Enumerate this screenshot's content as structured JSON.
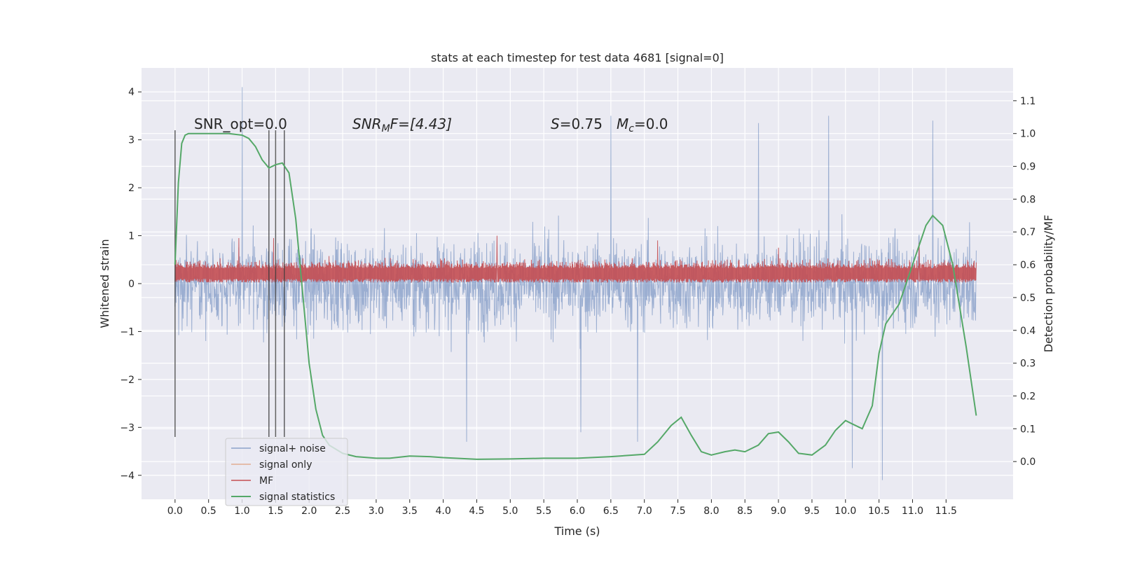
{
  "chart_data": {
    "type": "line",
    "title": "stats at each timestep for test data 4681 [signal=0]",
    "xlabel": "Time (s)",
    "ylabel": "Whitened strain",
    "y2label": "Detection probability/MF",
    "xlim": [
      -0.5,
      12.5
    ],
    "ylim": [
      -4.5,
      4.5
    ],
    "y2lim": [
      -0.115,
      1.2
    ],
    "x_ticks": [
      0.0,
      0.5,
      1.0,
      1.5,
      2.0,
      2.5,
      3.0,
      3.5,
      4.0,
      4.5,
      5.0,
      5.5,
      6.0,
      6.5,
      7.0,
      7.5,
      8.0,
      8.5,
      9.0,
      9.5,
      10.0,
      10.5,
      11.0,
      11.5
    ],
    "x_tick_labels": [
      "0.0",
      "0.5",
      "1.0",
      "1.5",
      "2.0",
      "2.5",
      "3.0",
      "3.5",
      "4.0",
      "4.5",
      "5.0",
      "5.5",
      "6.0",
      "6.5",
      "7.0",
      "7.5",
      "8.0",
      "8.5",
      "9.0",
      "9.5",
      "10.0",
      "10.5",
      "11.0",
      "11.5"
    ],
    "y_ticks": [
      4,
      3,
      2,
      1,
      0,
      -1,
      -2,
      -3,
      -4
    ],
    "y_tick_labels": [
      "4",
      "3",
      "2",
      "1",
      "0",
      "−1",
      "−2",
      "−3",
      "−4"
    ],
    "y2_ticks": [
      1.1,
      1.0,
      0.9,
      0.8,
      0.7,
      0.6,
      0.5,
      0.4,
      0.3,
      0.2,
      0.1,
      0.0
    ],
    "y2_tick_labels": [
      "1.1",
      "1.0",
      "0.9",
      "0.8",
      "0.7",
      "0.6",
      "0.5",
      "0.4",
      "0.3",
      "0.2",
      "0.1",
      "0.0"
    ],
    "grid": true,
    "legend_position": "lower-left",
    "annotations": {
      "snr_opt": "SNR_opt=0.0",
      "snr_mf_base": "SNR",
      "snr_mf_sub": "M",
      "snr_mf_rest": "F=[4.43]",
      "s_var": "S",
      "s_rest": "=0.75",
      "mc_var": "M",
      "mc_sub": "c",
      "mc_rest": "=0.0"
    },
    "vlines": [
      0.0,
      1.4,
      1.5,
      1.63
    ],
    "vline_range": [
      -3.2,
      3.2
    ],
    "series": [
      {
        "name": "signal+ noise",
        "color": "#4c72b0",
        "axis": "left",
        "style": "noise",
        "x_range": [
          0.0,
          11.95
        ],
        "samples": 2400,
        "sigma": 0.9,
        "clip": [
          -2.9,
          2.9
        ],
        "outlier_times": [
          1.0,
          4.35,
          6.05,
          6.5,
          6.9,
          8.7,
          9.75,
          10.1,
          10.55,
          11.3
        ],
        "outlier_values": [
          4.1,
          -3.3,
          -3.1,
          3.5,
          -3.3,
          3.35,
          3.5,
          -3.85,
          -4.1,
          3.4
        ]
      },
      {
        "name": "signal only",
        "color": "#dd8452",
        "axis": "left",
        "style": "line",
        "values": []
      },
      {
        "name": "MF",
        "color": "#c44e52",
        "axis": "left",
        "style": "band",
        "x_range": [
          0.0,
          11.95
        ],
        "samples": 2400,
        "low": 0.02,
        "center": 0.32,
        "spread": 0.16,
        "outlier_times": [
          0.95,
          1.47,
          4.8,
          7.2,
          9.0,
          11.1
        ],
        "outlier_values": [
          0.95,
          0.95,
          1.0,
          0.9,
          0.75,
          0.85
        ]
      },
      {
        "name": "signal statistics",
        "color": "#55a868",
        "axis": "right",
        "style": "line",
        "x": [
          0.0,
          0.05,
          0.1,
          0.15,
          0.2,
          0.3,
          0.4,
          0.6,
          0.8,
          1.0,
          1.1,
          1.2,
          1.3,
          1.4,
          1.5,
          1.6,
          1.7,
          1.8,
          1.9,
          2.0,
          2.1,
          2.2,
          2.3,
          2.5,
          2.7,
          3.0,
          3.2,
          3.5,
          3.8,
          4.0,
          4.5,
          5.0,
          5.5,
          6.0,
          6.5,
          7.0,
          7.2,
          7.4,
          7.55,
          7.7,
          7.85,
          8.0,
          8.2,
          8.35,
          8.5,
          8.7,
          8.85,
          9.0,
          9.15,
          9.3,
          9.5,
          9.7,
          9.85,
          10.0,
          10.1,
          10.25,
          10.4,
          10.5,
          10.6,
          10.8,
          11.0,
          11.2,
          11.3,
          11.45,
          11.6,
          11.8,
          11.95
        ],
        "y": [
          0.6,
          0.85,
          0.97,
          0.995,
          1.0,
          1.0,
          1.0,
          1.0,
          1.0,
          0.995,
          0.985,
          0.96,
          0.92,
          0.895,
          0.905,
          0.91,
          0.88,
          0.74,
          0.52,
          0.3,
          0.16,
          0.08,
          0.05,
          0.025,
          0.015,
          0.01,
          0.01,
          0.017,
          0.015,
          0.012,
          0.007,
          0.008,
          0.01,
          0.01,
          0.015,
          0.022,
          0.06,
          0.11,
          0.135,
          0.08,
          0.03,
          0.02,
          0.03,
          0.035,
          0.03,
          0.05,
          0.085,
          0.09,
          0.06,
          0.025,
          0.02,
          0.05,
          0.095,
          0.125,
          0.115,
          0.1,
          0.17,
          0.33,
          0.42,
          0.48,
          0.6,
          0.72,
          0.75,
          0.72,
          0.6,
          0.35,
          0.14
        ]
      }
    ]
  }
}
